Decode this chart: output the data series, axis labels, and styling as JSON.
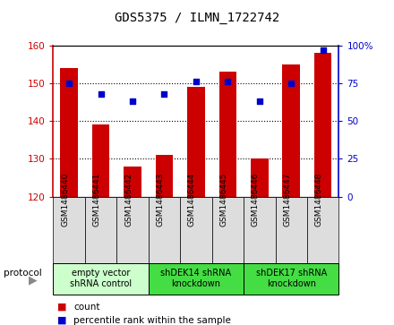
{
  "title": "GDS5375 / ILMN_1722742",
  "samples": [
    "GSM1486440",
    "GSM1486441",
    "GSM1486442",
    "GSM1486443",
    "GSM1486444",
    "GSM1486445",
    "GSM1486446",
    "GSM1486447",
    "GSM1486448"
  ],
  "counts": [
    154,
    139,
    128,
    131,
    149,
    153,
    130,
    155,
    158
  ],
  "percentiles": [
    75,
    68,
    63,
    68,
    76,
    76,
    63,
    75,
    97
  ],
  "ylim_left": [
    120,
    160
  ],
  "ylim_right": [
    0,
    100
  ],
  "yticks_left": [
    120,
    130,
    140,
    150,
    160
  ],
  "yticks_right": [
    0,
    25,
    50,
    75,
    100
  ],
  "ytick_labels_right": [
    "0",
    "25",
    "50",
    "75",
    "100%"
  ],
  "bar_color": "#cc0000",
  "scatter_color": "#0000cc",
  "bar_bottom": 120,
  "groups": [
    {
      "label": "empty vector\nshRNA control",
      "start": 0,
      "end": 3,
      "color": "#ccffcc"
    },
    {
      "label": "shDEK14 shRNA\nknockdown",
      "start": 3,
      "end": 6,
      "color": "#44dd44"
    },
    {
      "label": "shDEK17 shRNA\nknockdown",
      "start": 6,
      "end": 9,
      "color": "#44dd44"
    }
  ],
  "sample_box_color": "#dddddd",
  "legend_count_label": "count",
  "legend_pct_label": "percentile rank within the sample",
  "protocol_label": "protocol",
  "grid_color": "#000000",
  "title_fontsize": 10,
  "tick_fontsize": 7.5,
  "sample_fontsize": 6.5,
  "group_fontsize": 7,
  "legend_fontsize": 7.5
}
